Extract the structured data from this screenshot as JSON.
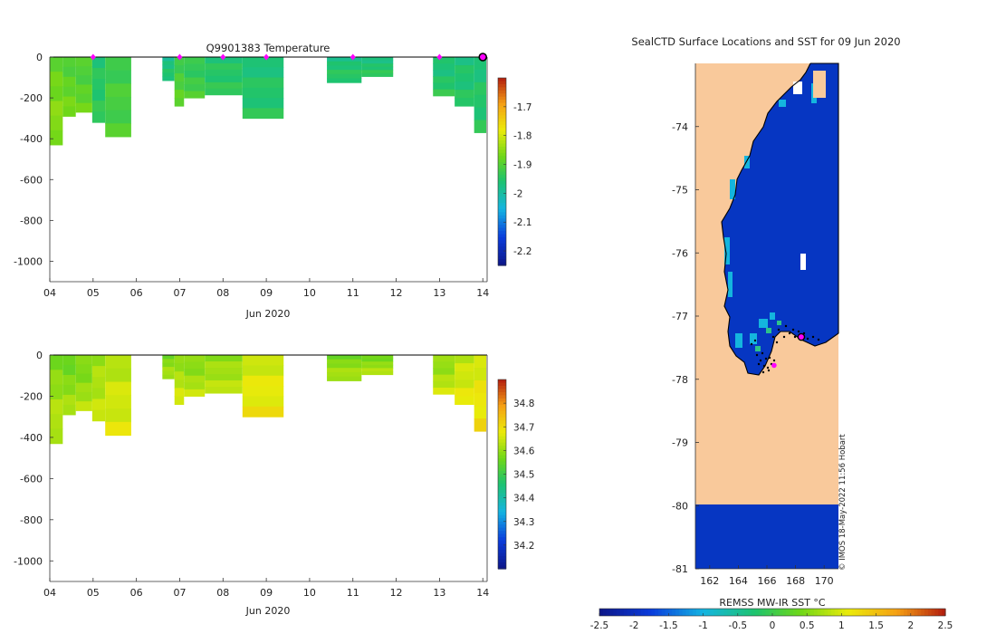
{
  "chart_data": [
    {
      "type": "heatmap",
      "title": "Q9901383  Temperature",
      "variable": "temperature",
      "xlabel": "Jun 2020",
      "ylabel": "",
      "x_tick_labels": [
        "04",
        "05",
        "06",
        "07",
        "08",
        "09",
        "10",
        "11",
        "12",
        "13",
        "14"
      ],
      "xlim": [
        4,
        14.1
      ],
      "ylim": [
        -1100,
        0
      ],
      "y_ticks": [
        0,
        -200,
        -400,
        -600,
        -800,
        -1000
      ],
      "colorbar": {
        "min": -2.25,
        "max": -1.6,
        "ticks": [
          -1.7,
          -1.8,
          -1.9,
          -2,
          -2.1,
          -2.2
        ],
        "tick_labels": [
          "-1.7",
          "-1.8",
          "-1.9",
          "-2",
          "-2.1",
          "-2.2"
        ]
      },
      "profiles": [
        {
          "start": 4.0,
          "end": 4.3,
          "depth": 430,
          "value": -1.88
        },
        {
          "start": 4.3,
          "end": 4.6,
          "depth": 290,
          "value": -1.9
        },
        {
          "start": 4.6,
          "end": 4.98,
          "depth": 270,
          "value": -1.91
        },
        {
          "start": 4.98,
          "end": 5.28,
          "depth": 320,
          "value": -1.96
        },
        {
          "start": 5.28,
          "end": 5.88,
          "depth": 390,
          "value": -1.93
        },
        {
          "start": 6.6,
          "end": 6.88,
          "depth": 115,
          "value": -1.98
        },
        {
          "start": 6.88,
          "end": 7.1,
          "depth": 240,
          "value": -1.92
        },
        {
          "start": 7.1,
          "end": 7.58,
          "depth": 200,
          "value": -1.94
        },
        {
          "start": 7.58,
          "end": 8.45,
          "depth": 185,
          "value": -1.96
        },
        {
          "start": 8.45,
          "end": 9.4,
          "depth": 300,
          "value": -1.97
        },
        {
          "start": 10.4,
          "end": 11.2,
          "depth": 125,
          "value": -1.97
        },
        {
          "start": 11.2,
          "end": 11.93,
          "depth": 95,
          "value": -1.97
        },
        {
          "start": 12.85,
          "end": 13.35,
          "depth": 190,
          "value": -1.97
        },
        {
          "start": 13.35,
          "end": 13.8,
          "depth": 240,
          "value": -1.97
        },
        {
          "start": 13.8,
          "end": 14.08,
          "depth": 370,
          "value": -1.97
        }
      ],
      "surface_markers": [
        5.0,
        7.0,
        8.0,
        9.0,
        11.0,
        13.0,
        14.0
      ]
    },
    {
      "type": "heatmap",
      "title": "",
      "variable": "salinity",
      "xlabel": "Jun 2020",
      "ylabel": "",
      "x_tick_labels": [
        "04",
        "05",
        "06",
        "07",
        "08",
        "09",
        "10",
        "11",
        "12",
        "13",
        "14"
      ],
      "xlim": [
        4,
        14.1
      ],
      "ylim": [
        -1100,
        0
      ],
      "y_ticks": [
        0,
        -200,
        -400,
        -600,
        -800,
        -1000
      ],
      "colorbar": {
        "min": 34.1,
        "max": 34.9,
        "ticks": [
          34.2,
          34.3,
          34.4,
          34.5,
          34.6,
          34.7,
          34.8
        ],
        "tick_labels": [
          "34.2",
          "34.3",
          "34.4",
          "34.5",
          "34.6",
          "34.7",
          "34.8"
        ]
      },
      "profiles": [
        {
          "start": 4.0,
          "end": 4.3,
          "depth": 430,
          "value": 34.58
        },
        {
          "start": 4.3,
          "end": 4.6,
          "depth": 290,
          "value": 34.56
        },
        {
          "start": 4.6,
          "end": 4.98,
          "depth": 270,
          "value": 34.57
        },
        {
          "start": 4.98,
          "end": 5.28,
          "depth": 320,
          "value": 34.6
        },
        {
          "start": 5.28,
          "end": 5.88,
          "depth": 390,
          "value": 34.62
        },
        {
          "start": 6.6,
          "end": 6.88,
          "depth": 115,
          "value": 34.57
        },
        {
          "start": 6.88,
          "end": 7.1,
          "depth": 240,
          "value": 34.6
        },
        {
          "start": 7.1,
          "end": 7.58,
          "depth": 200,
          "value": 34.58
        },
        {
          "start": 7.58,
          "end": 8.45,
          "depth": 185,
          "value": 34.59
        },
        {
          "start": 8.45,
          "end": 9.4,
          "depth": 300,
          "value": 34.64
        },
        {
          "start": 10.4,
          "end": 11.2,
          "depth": 125,
          "value": 34.57
        },
        {
          "start": 11.2,
          "end": 11.93,
          "depth": 95,
          "value": 34.57
        },
        {
          "start": 12.85,
          "end": 13.35,
          "depth": 190,
          "value": 34.59
        },
        {
          "start": 13.35,
          "end": 13.8,
          "depth": 240,
          "value": 34.63
        },
        {
          "start": 13.8,
          "end": 14.08,
          "depth": 370,
          "value": 34.65
        }
      ]
    },
    {
      "type": "map",
      "title": "SealCTD Surface Locations and SST for 09 Jun 2020",
      "x_tick_labels": [
        "162",
        "164",
        "166",
        "168",
        "170"
      ],
      "y_tick_labels": [
        "-74",
        "-75",
        "-76",
        "-77",
        "-78",
        "-79",
        "-80",
        "-81"
      ],
      "lon_range": [
        161,
        171
      ],
      "lat_range": [
        -81,
        -73
      ],
      "colorbar_label": "REMSS MW-IR SST °C",
      "colorbar_tick_labels": [
        "-2.5",
        "-2",
        "-1.5",
        "-1",
        "-0.5",
        "0",
        "0.5",
        "1",
        "1.5",
        "2",
        "2.5"
      ],
      "colorbar_range": [
        -2.5,
        2.5
      ],
      "credit": "© IMOS 18-May-2022 11:56 Hobart",
      "current_location": {
        "lon": 168.4,
        "lat": -77.33
      },
      "secondary_location": {
        "lon": 166.5,
        "lat": -77.78
      }
    }
  ],
  "colors": {
    "land": "#f9c99b",
    "water": "#0636c2",
    "coast": "#000000",
    "marker": "#ff00ff"
  }
}
